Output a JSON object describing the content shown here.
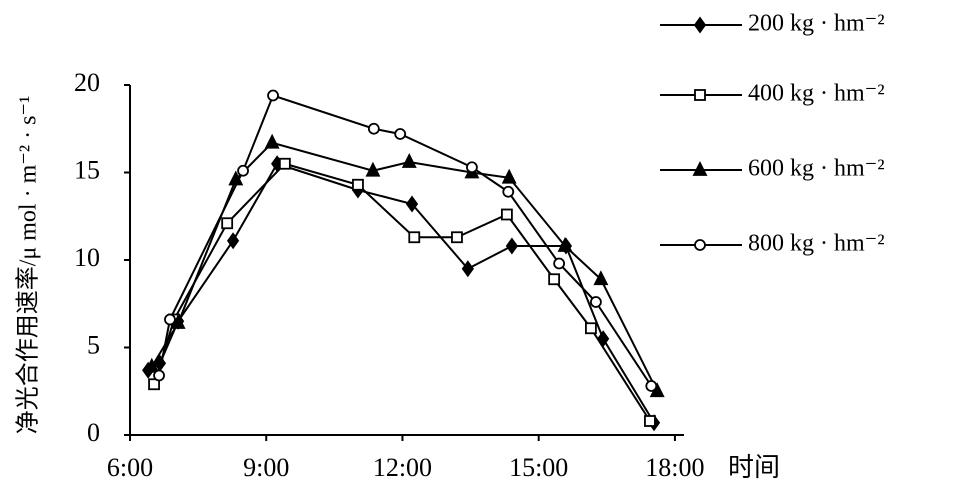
{
  "chart_data": {
    "type": "line",
    "y_label": "净光合作用速率/μ mol · m⁻² · s⁻¹",
    "x_label": "时间",
    "xlim": [
      6,
      18.2
    ],
    "xticks": [
      {
        "value": 6,
        "label": "6:00"
      },
      {
        "value": 9,
        "label": "9:00"
      },
      {
        "value": 12,
        "label": "12:00"
      },
      {
        "value": 15,
        "label": "15:00"
      },
      {
        "value": 18,
        "label": "18:00"
      }
    ],
    "ylim": [
      0,
      20
    ],
    "yticks": [
      0,
      5,
      10,
      15,
      20
    ],
    "grid": false,
    "legend": "right",
    "series": [
      {
        "name": "200  kg · hm⁻²",
        "color": "#000000",
        "marker": "diamond",
        "filled": true,
        "x": [
          6.4,
          6.66,
          7.06,
          8.27,
          9.24,
          11.02,
          12.21,
          13.44,
          14.41,
          15.6,
          16.42,
          17.54
        ],
        "values": [
          3.7,
          4.1,
          6.5,
          11.1,
          15.5,
          14.0,
          13.2,
          9.5,
          10.8,
          10.8,
          5.5,
          0.7
        ]
      },
      {
        "name": "400  kg · hm⁻²",
        "color": "#000000",
        "marker": "square",
        "filled": false,
        "x": [
          6.53,
          6.97,
          8.14,
          9.41,
          11.02,
          12.26,
          13.2,
          14.3,
          15.34,
          16.15,
          17.45
        ],
        "values": [
          2.9,
          6.6,
          12.1,
          15.5,
          14.3,
          11.3,
          11.3,
          12.6,
          8.9,
          6.1,
          0.8
        ]
      },
      {
        "name": "600  kg · hm⁻²",
        "color": "#000000",
        "marker": "triangle",
        "filled": true,
        "x": [
          6.48,
          7.06,
          8.33,
          9.13,
          11.35,
          12.15,
          13.53,
          14.35,
          15.58,
          16.37,
          17.61
        ],
        "values": [
          3.9,
          6.4,
          14.6,
          16.7,
          15.1,
          15.6,
          15.0,
          14.7,
          10.8,
          8.9,
          2.5
        ]
      },
      {
        "name": "800  kg · hm⁻²",
        "color": "#000000",
        "marker": "circle",
        "filled": false,
        "x": [
          6.64,
          6.88,
          8.49,
          9.15,
          11.37,
          11.95,
          13.53,
          14.33,
          15.45,
          16.26,
          17.48
        ],
        "values": [
          3.4,
          6.6,
          15.1,
          19.4,
          17.5,
          17.2,
          15.3,
          13.9,
          9.8,
          7.6,
          2.8
        ]
      }
    ]
  }
}
